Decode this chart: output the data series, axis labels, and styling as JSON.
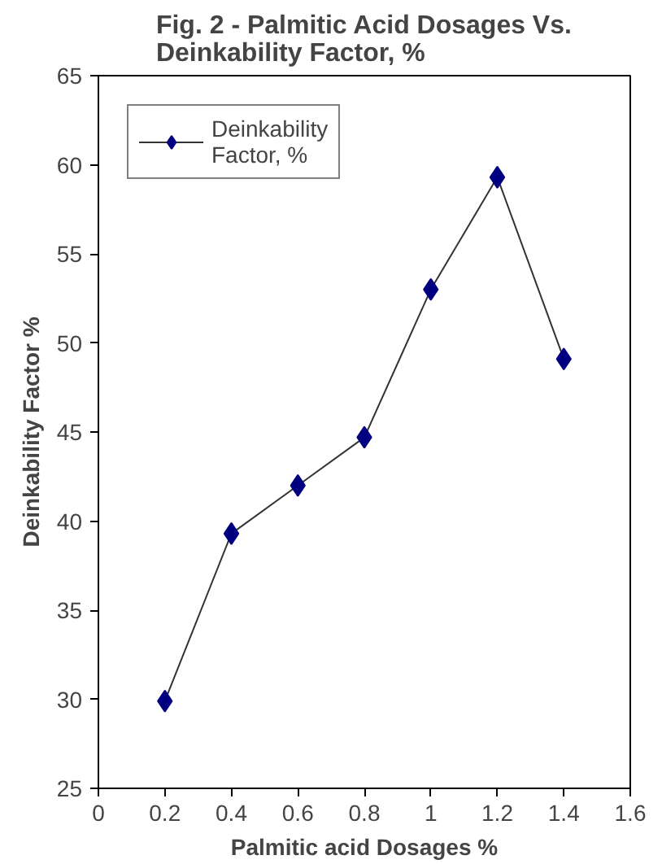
{
  "chart_data": {
    "type": "line",
    "title": "Fig. 2 - Palmitic Acid Dosages Vs.\nDeinkability Factor, %",
    "xlabel": "Palmitic acid Dosages %",
    "ylabel": "Deinkability Factor %",
    "x": [
      0.2,
      0.4,
      0.6,
      0.8,
      1.0,
      1.2,
      1.4
    ],
    "series": [
      {
        "name": "Deinkability\nFactor, %",
        "color": "#000080",
        "values": [
          29.9,
          39.3,
          42.0,
          44.7,
          53.0,
          59.3,
          49.1
        ]
      }
    ],
    "xlim": [
      0,
      1.6
    ],
    "xticks": [
      0,
      0.2,
      0.4,
      0.6,
      0.8,
      1,
      1.2,
      1.4,
      1.6
    ],
    "ylim": [
      25,
      65
    ],
    "yticks": [
      25,
      30,
      35,
      40,
      45,
      50,
      55,
      60,
      65
    ],
    "marker": "diamond",
    "legend": "top left",
    "grid": false
  }
}
